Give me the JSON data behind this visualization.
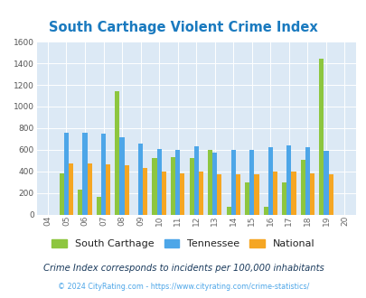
{
  "title": "South Carthage Violent Crime Index",
  "title_color": "#1a7abf",
  "years": [
    "04",
    "05",
    "06",
    "07",
    "08",
    "09",
    "10",
    "11",
    "12",
    "13",
    "14",
    "15",
    "16",
    "17",
    "18",
    "19",
    "20"
  ],
  "south_carthage": [
    0,
    385,
    230,
    160,
    1145,
    0,
    520,
    530,
    525,
    600,
    75,
    300,
    70,
    295,
    510,
    1440,
    0
  ],
  "tennessee": [
    0,
    755,
    755,
    750,
    715,
    660,
    610,
    600,
    635,
    575,
    600,
    600,
    625,
    640,
    620,
    590,
    0
  ],
  "national": [
    0,
    475,
    475,
    465,
    455,
    430,
    400,
    385,
    400,
    370,
    370,
    375,
    395,
    395,
    380,
    375,
    0
  ],
  "bar_width": 0.25,
  "color_sc": "#8dc63f",
  "color_tn": "#4da6e8",
  "color_nat": "#f5a623",
  "ylim": [
    0,
    1600
  ],
  "yticks": [
    0,
    200,
    400,
    600,
    800,
    1000,
    1200,
    1400,
    1600
  ],
  "background_color": "#dce9f5",
  "legend_labels": [
    "South Carthage",
    "Tennessee",
    "National"
  ],
  "subtitle": "Crime Index corresponds to incidents per 100,000 inhabitants",
  "subtitle_color": "#1a3a5c",
  "footer": "© 2024 CityRating.com - https://www.cityrating.com/crime-statistics/",
  "footer_color": "#4da6e8"
}
